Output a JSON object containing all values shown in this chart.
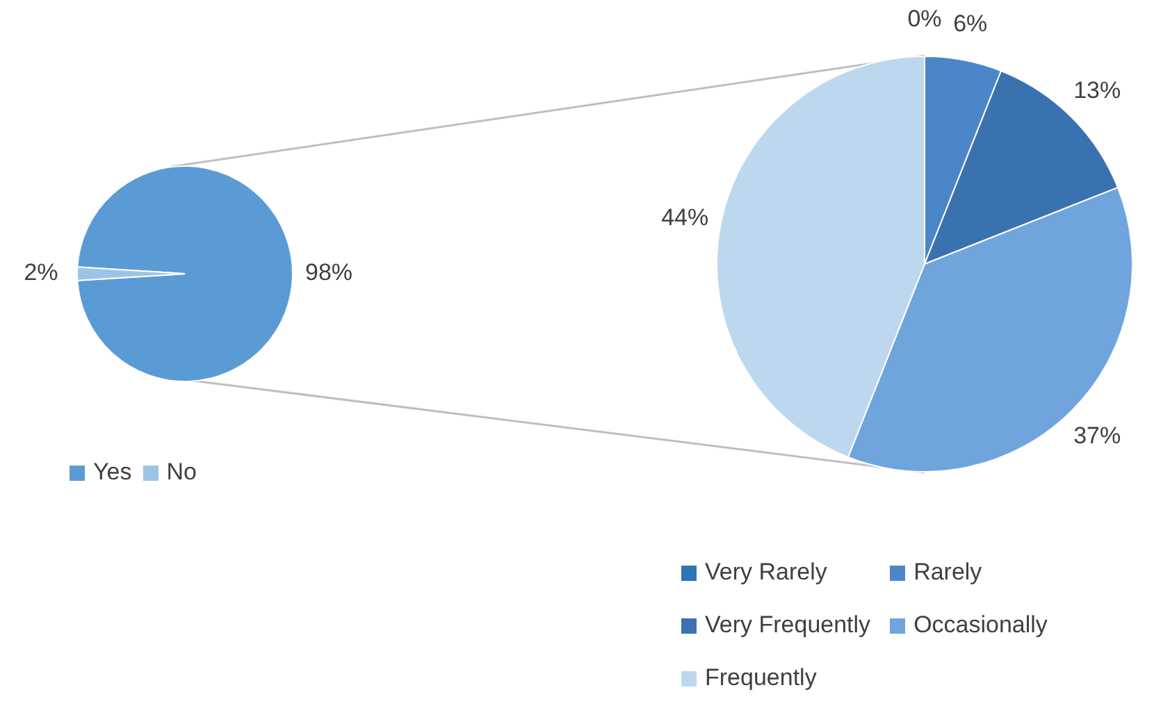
{
  "chart_data": [
    {
      "type": "pie",
      "categories": [
        "Yes",
        "No"
      ],
      "values": [
        98,
        2
      ],
      "colors": [
        "#5b9bd5",
        "#9dc3e6"
      ],
      "value_labels": [
        "98%",
        "2%"
      ],
      "legend": "bottom"
    },
    {
      "type": "pie",
      "categories": [
        "Very Rarely",
        "Rarely",
        "Very Frequently",
        "Occasionally",
        "Frequently"
      ],
      "values": [
        0,
        6,
        13,
        37,
        44
      ],
      "colors": [
        "#2e75b6",
        "#4a86c8",
        "#3a72b0",
        "#6fa5dc",
        "#bdd7ee"
      ],
      "value_labels": [
        "0%",
        "6%",
        "13%",
        "37%",
        "44%"
      ],
      "legend": "bottom"
    }
  ]
}
